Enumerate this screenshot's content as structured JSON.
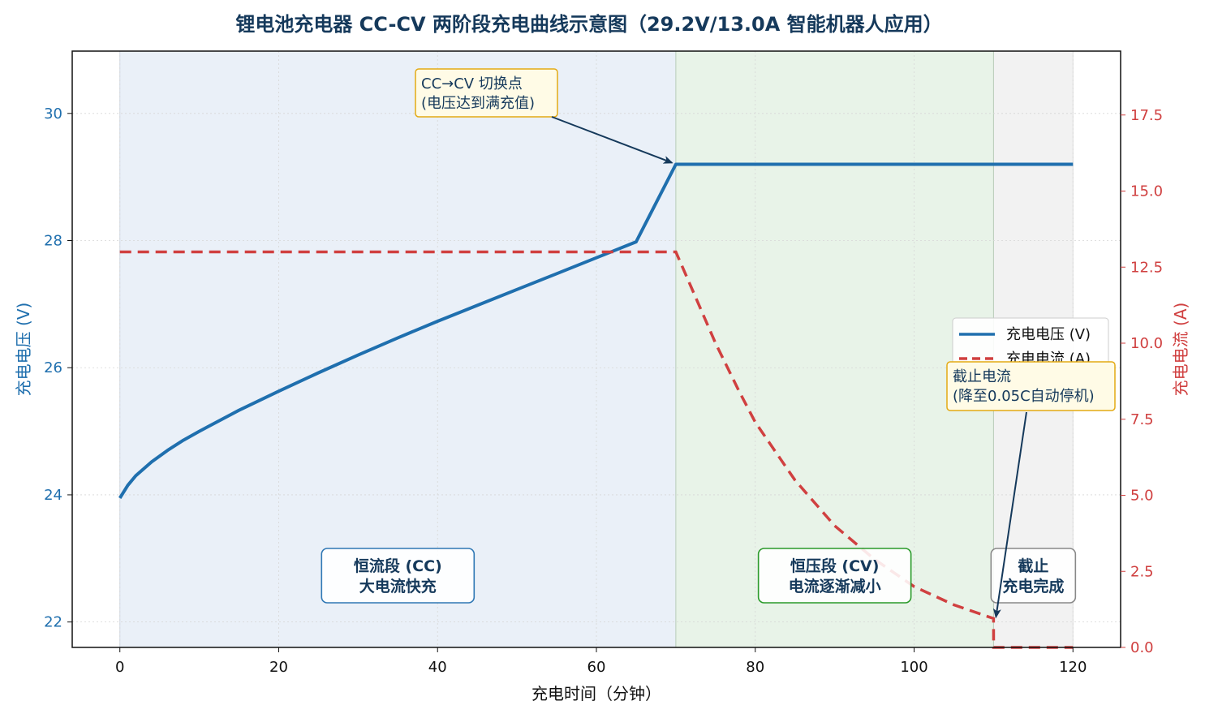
{
  "chart_data": {
    "type": "line",
    "title": "锂电池充电器 CC-CV 两阶段充电曲线示意图（29.2V/13.0A 智能机器人应用）",
    "xlabel": "充电时间（分钟）",
    "ylabel_left": "充电电压 (V)",
    "ylabel_right": "充电电流 (A)",
    "xlim": [
      -6,
      126
    ],
    "ylim_left": [
      21.6,
      30.98
    ],
    "ylim_right": [
      0,
      19.6
    ],
    "xticks": [
      0,
      20,
      40,
      60,
      80,
      100,
      120
    ],
    "yticks_left": [
      22,
      24,
      26,
      28,
      30
    ],
    "yticks_right": [
      "0.0",
      "2.5",
      "5.0",
      "7.5",
      "10.0",
      "12.5",
      "15.0",
      "17.5"
    ],
    "grid": true,
    "legend_position": "center-right",
    "colors": {
      "voltage": "#1f6fae",
      "current": "#d04040",
      "cc_region": "#eaf0f8",
      "cv_region": "#e8f3e8",
      "cutoff_region": "#f2f2f2"
    },
    "series": [
      {
        "name": "充电电压 (V)",
        "axis": "left",
        "style": "solid",
        "x": [
          0,
          1,
          2,
          4,
          6,
          8,
          10,
          15,
          20,
          25,
          30,
          35,
          40,
          45,
          50,
          55,
          60,
          65,
          70,
          75,
          80,
          85,
          90,
          95,
          100,
          105,
          110,
          115,
          120
        ],
        "values": [
          23.95,
          24.15,
          24.3,
          24.52,
          24.7,
          24.86,
          25.0,
          25.33,
          25.63,
          25.92,
          26.2,
          26.47,
          26.73,
          26.98,
          27.23,
          27.48,
          27.73,
          27.98,
          29.2,
          29.2,
          29.2,
          29.2,
          29.2,
          29.2,
          29.2,
          29.2,
          29.2,
          29.2,
          29.2
        ]
      },
      {
        "name": "充电电流 (A)",
        "axis": "right",
        "style": "dashed",
        "x": [
          0,
          10,
          20,
          30,
          40,
          50,
          60,
          70,
          72,
          75,
          78,
          80,
          85,
          90,
          95,
          100,
          105,
          110,
          110.01,
          115,
          120
        ],
        "values": [
          13.0,
          13.0,
          13.0,
          13.0,
          13.0,
          13.0,
          13.0,
          13.0,
          11.8,
          10.0,
          8.4,
          7.4,
          5.5,
          4.0,
          2.9,
          2.0,
          1.4,
          0.95,
          0,
          0,
          0
        ]
      }
    ],
    "regions": [
      {
        "x0": 0,
        "x1": 70,
        "label_line1": "恒流段 (CC)",
        "label_line2": "大电流快充",
        "label_x": 35,
        "border": "#2f77b4"
      },
      {
        "x0": 70,
        "x1": 110,
        "label_line1": "恒压段 (CV)",
        "label_line2": "电流逐渐减小",
        "label_x": 90,
        "border": "#2a9a2a"
      },
      {
        "x0": 110,
        "x1": 120,
        "label_line1": "截止",
        "label_line2": "充电完成",
        "label_x": 115,
        "border": "#888888"
      }
    ],
    "annotations": [
      {
        "line1": "CC→CV 切换点",
        "line2": "(电压达到满充值)",
        "target_x": 70,
        "target_y_left": 29.2
      },
      {
        "line1": "截止电流",
        "line2": "(降至0.05C自动停机)",
        "target_x": 110,
        "target_y_right": 0.95
      }
    ]
  }
}
